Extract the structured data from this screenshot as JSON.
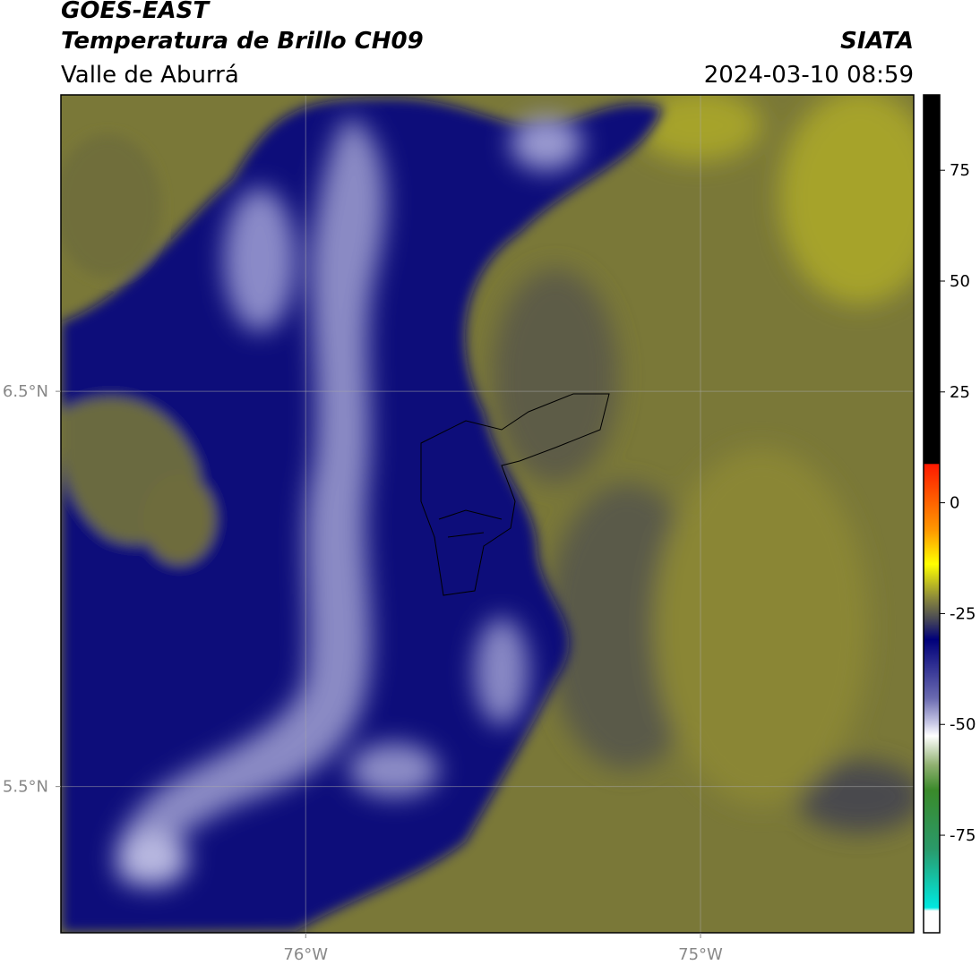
{
  "header": {
    "title": "GOES-EAST",
    "subtitle": "Temperatura de Brillo CH09",
    "region": "Valle de Aburrá",
    "source": "SIATA",
    "datetime": "2024-03-10 08:59"
  },
  "map": {
    "xlim": [
      -76.62,
      -74.46
    ],
    "ylim": [
      5.13,
      7.25
    ],
    "xticks": [
      {
        "value": -76,
        "label": "76°W"
      },
      {
        "value": -75,
        "label": "75°W"
      }
    ],
    "yticks": [
      {
        "value": 6.5,
        "label": "6.5°N"
      },
      {
        "value": 5.5,
        "label": "5.5°N"
      }
    ],
    "grid": true
  },
  "colorbar": {
    "lim": [
      -97,
      92
    ],
    "ticks": [
      75,
      50,
      25,
      0,
      -25,
      -50,
      -75
    ]
  }
}
